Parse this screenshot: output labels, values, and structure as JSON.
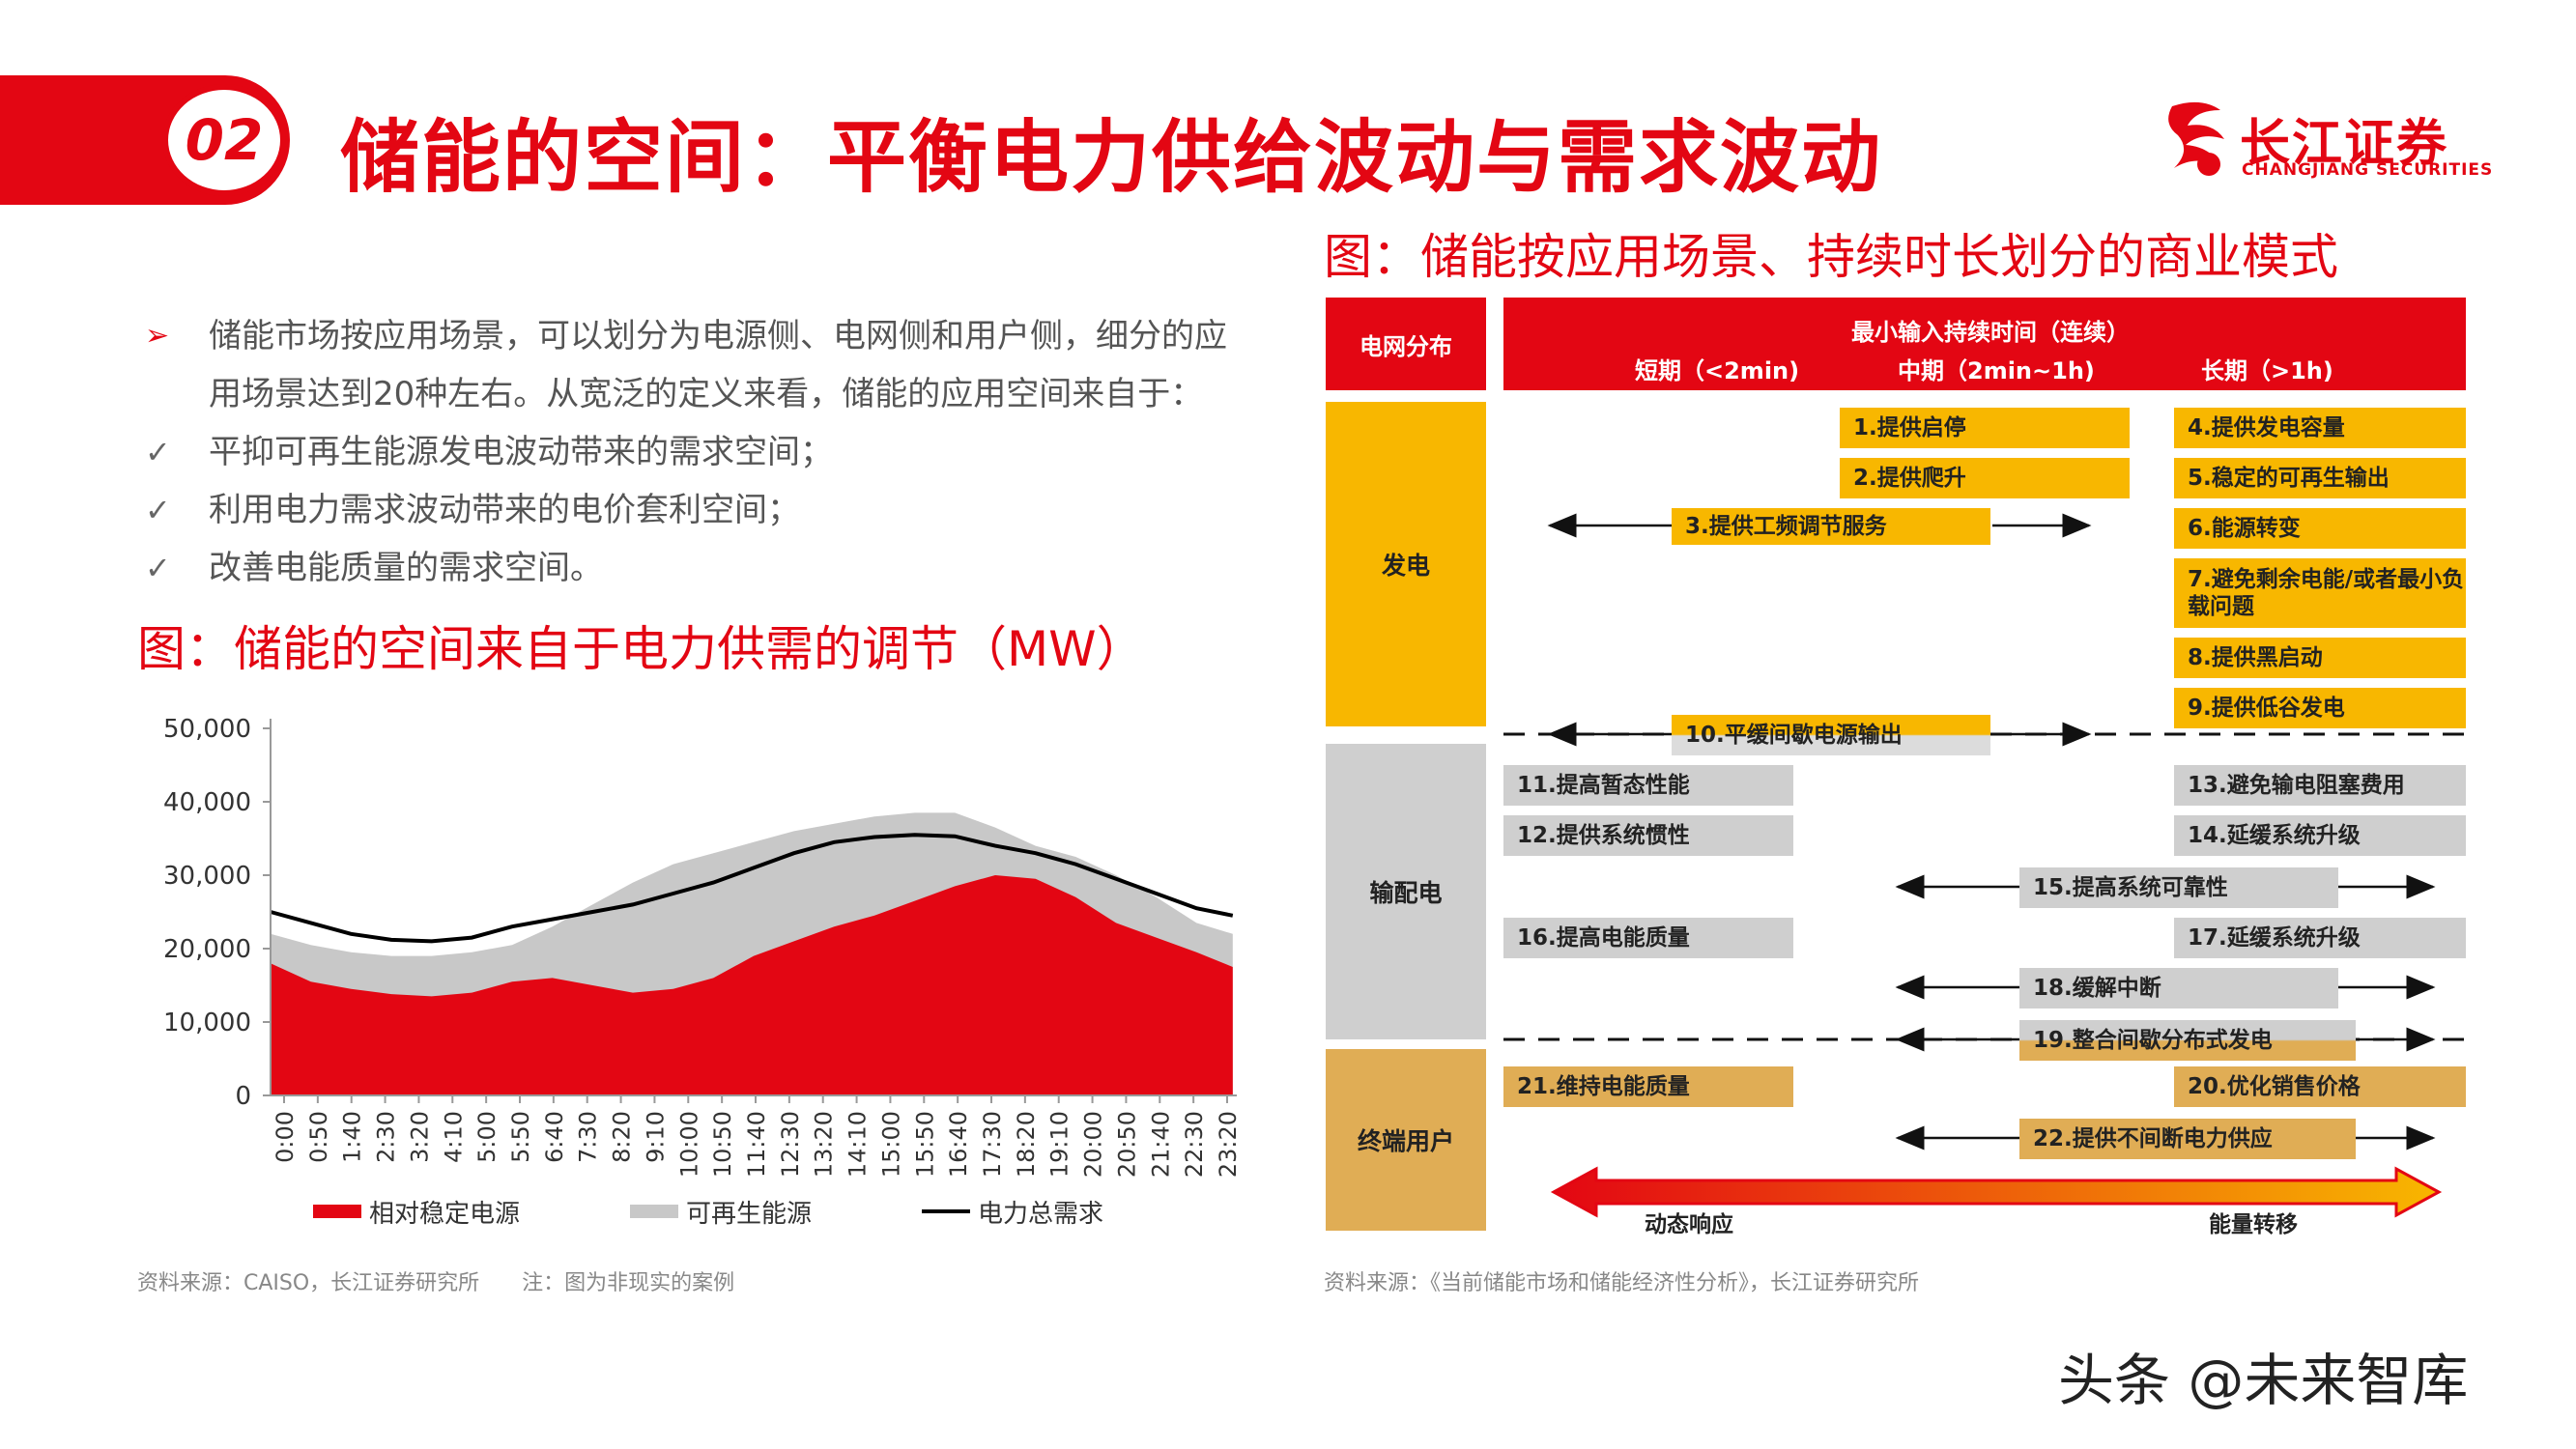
{
  "header": {
    "section_number": "02",
    "title": "储能的空间：平衡电力供给波动与需求波动",
    "logo_cn": "长江证券",
    "logo_en": "CHANGJIANG SECURITIES"
  },
  "bullets": [
    {
      "mark": "➢",
      "text": "储能市场按应用场景，可以划分为电源侧、电网侧和用户侧，细分的应用场景达到20种左右。从宽泛的定义来看，储能的应用空间来自于："
    },
    {
      "mark": "✓",
      "text": "平抑可再生能源发电波动带来的需求空间；"
    },
    {
      "mark": "✓",
      "text": "利用电力需求波动带来的电价套利空间；"
    },
    {
      "mark": "✓",
      "text": "改善电能质量的需求空间。"
    }
  ],
  "left_figure": {
    "title": "图：储能的空间来自于电力供需的调节（MW）",
    "source": "资料来源：CAISO，长江证券研究所　　注：图为非现实的案例"
  },
  "chart_data": {
    "type": "area",
    "title": "",
    "xlabel": "",
    "ylabel": "",
    "ylim": [
      0,
      50000
    ],
    "yticks": [
      "50,000",
      "40,000",
      "30,000",
      "20,000",
      "10,000",
      "0"
    ],
    "xticks": [
      "0:00",
      "0:50",
      "1:40",
      "2:30",
      "3:20",
      "4:10",
      "5:00",
      "5:50",
      "6:40",
      "7:30",
      "8:20",
      "9:10",
      "10:00",
      "10:50",
      "11:40",
      "12:30",
      "13:20",
      "14:10",
      "15:00",
      "15:50",
      "16:40",
      "17:30",
      "18:20",
      "19:10",
      "20:00",
      "20:50",
      "21:40",
      "22:30",
      "23:20"
    ],
    "x_hours": [
      0,
      1,
      2,
      3,
      4,
      5,
      6,
      7,
      8,
      9,
      10,
      11,
      12,
      13,
      14,
      15,
      16,
      17,
      18,
      19,
      20,
      21,
      22,
      23,
      23.9
    ],
    "series": [
      {
        "name": "相对稳定电源",
        "kind": "area",
        "color": "#e30613",
        "values": [
          18000,
          15500,
          14500,
          13800,
          13500,
          14000,
          15500,
          16000,
          15000,
          14000,
          14500,
          16000,
          19000,
          21000,
          23000,
          24500,
          26500,
          28500,
          30000,
          29500,
          27000,
          23500,
          21500,
          19500,
          17500
        ]
      },
      {
        "name": "可再生能源",
        "kind": "area",
        "color": "#c8c8c8",
        "values": [
          22000,
          20500,
          19500,
          19000,
          19000,
          19500,
          20500,
          23000,
          26000,
          29000,
          31500,
          33000,
          34500,
          36000,
          37000,
          38000,
          38500,
          38500,
          36500,
          34000,
          32500,
          30000,
          27000,
          23500,
          22000
        ]
      },
      {
        "name": "电力总需求",
        "kind": "line",
        "color": "#000000",
        "values": [
          25000,
          23500,
          22000,
          21200,
          21000,
          21500,
          23000,
          24000,
          25000,
          26000,
          27500,
          29000,
          31000,
          33000,
          34500,
          35200,
          35500,
          35300,
          34000,
          33000,
          31500,
          29500,
          27500,
          25500,
          24500
        ]
      }
    ],
    "legend_position": "bottom",
    "grid": false
  },
  "right_figure": {
    "title": "图：储能按应用场景、持续时长划分的商业模式",
    "source": "资料来源：《当前储能市场和储能经济性分析》，长江证券研究所",
    "header": {
      "category_label": "电网分布",
      "duration_label": "最小输入持续时间（连续）",
      "short": "短期（<2min)",
      "mid": "中期（2min~1h)",
      "long": "长期（>1h)"
    },
    "categories": [
      "发电",
      "输配电",
      "终端用户"
    ],
    "items": {
      "i1": "1.提供启停",
      "i2": "2.提供爬升",
      "i3": "3.提供工频调节服务",
      "i4": "4.提供发电容量",
      "i5": "5.稳定的可再生输出",
      "i6": "6.能源转变",
      "i7": "7.避免剩余电能/或者最小负载问题",
      "i8": "8.提供黑启动",
      "i9": "9.提供低谷发电",
      "i10": "10.平缓间歇电源输出",
      "i11": "11.提高暂态性能",
      "i12": "12.提供系统惯性",
      "i13": "13.避免输电阻塞费用",
      "i14": "14.延缓系统升级",
      "i15": "15.提高系统可靠性",
      "i16": "16.提高电能质量",
      "i17": "17.延缓系统升级",
      "i18": "18.缓解中断",
      "i19": "19.整合间歇分布式发电",
      "i20": "20.优化销售价格",
      "i21": "21.维持电能质量",
      "i22": "22.提供不间断电力供应"
    },
    "bottom_left": "动态响应",
    "bottom_right": "能量转移"
  },
  "watermark": "头条 @未来智库",
  "colors": {
    "red": "#e30613",
    "yellow": "#f8b700",
    "gray": "#cfcfcf",
    "tan": "#e0ad55"
  }
}
